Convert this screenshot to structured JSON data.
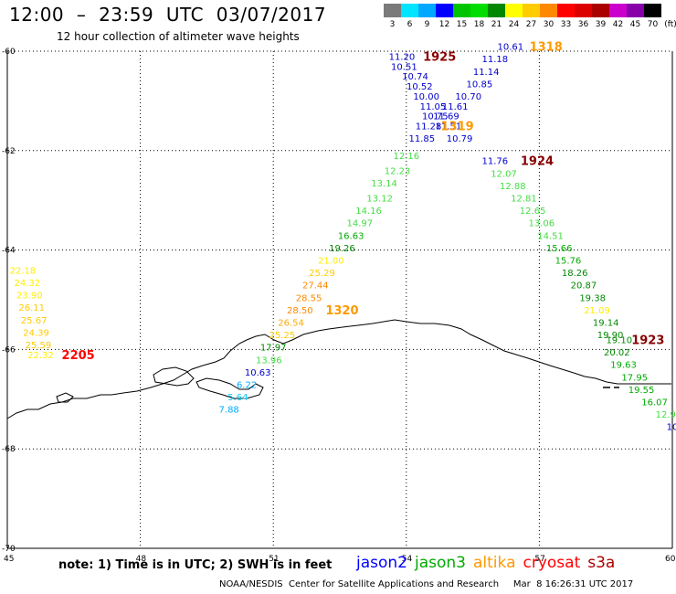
{
  "header": {
    "title": "12:00  –  23:59  UTC  03/07/2017",
    "subtitle": "12 hour collection of altimeter wave heights"
  },
  "color_scale": {
    "unit": "(ft)",
    "bins": [
      {
        "label": "3",
        "color": "#7a7a7a"
      },
      {
        "label": "6",
        "color": "#00e5ff"
      },
      {
        "label": "9",
        "color": "#00a8ff"
      },
      {
        "label": "12",
        "color": "#0000ff"
      },
      {
        "label": "15",
        "color": "#00c400"
      },
      {
        "label": "18",
        "color": "#00dd00"
      },
      {
        "label": "21",
        "color": "#008800"
      },
      {
        "label": "24",
        "color": "#ffff00"
      },
      {
        "label": "27",
        "color": "#ffcc00"
      },
      {
        "label": "30",
        "color": "#ff8800"
      },
      {
        "label": "33",
        "color": "#ff0000"
      },
      {
        "label": "36",
        "color": "#dd0000"
      },
      {
        "label": "39",
        "color": "#aa0000"
      },
      {
        "label": "42",
        "color": "#cc00cc"
      },
      {
        "label": "45",
        "color": "#8800aa"
      },
      {
        "label": "70",
        "color": "#000000"
      }
    ]
  },
  "axes": {
    "x_ticks": [
      "45",
      "48",
      "51",
      "54",
      "57",
      "60"
    ],
    "y_ticks": [
      "-60",
      "-62",
      "-64",
      "-66",
      "-68",
      "-70"
    ]
  },
  "map_data": {
    "lon_range": [
      45,
      60
    ],
    "lat_range": [
      -70,
      -60
    ],
    "observations": [
      {
        "text": "11.20",
        "color": "#0000cc",
        "lon": 53.9,
        "lat": -60.1
      },
      {
        "text": "10.51",
        "color": "#0000cc",
        "lon": 53.95,
        "lat": -60.3
      },
      {
        "text": "10.74",
        "color": "#0000cc",
        "lon": 54.2,
        "lat": -60.5
      },
      {
        "text": "10.52",
        "color": "#0000cc",
        "lon": 54.3,
        "lat": -60.7
      },
      {
        "text": "10.00",
        "color": "#0000cc",
        "lon": 54.45,
        "lat": -60.9
      },
      {
        "text": "11.05",
        "color": "#0000cc",
        "lon": 54.6,
        "lat": -61.1
      },
      {
        "text": "10.75",
        "color": "#0000cc",
        "lon": 54.65,
        "lat": -61.3
      },
      {
        "text": "11.28",
        "color": "#0000cc",
        "lon": 54.5,
        "lat": -61.5
      },
      {
        "text": "11.85",
        "color": "#0000cc",
        "lon": 54.35,
        "lat": -61.75
      },
      {
        "text": "10.61",
        "color": "#0000cc",
        "lon": 56.35,
        "lat": -59.9
      },
      {
        "text": "11.18",
        "color": "#0000cc",
        "lon": 56.0,
        "lat": -60.15
      },
      {
        "text": "11.14",
        "color": "#0000cc",
        "lon": 55.8,
        "lat": -60.4
      },
      {
        "text": "10.85",
        "color": "#0000cc",
        "lon": 55.65,
        "lat": -60.65
      },
      {
        "text": "10.70",
        "color": "#0000cc",
        "lon": 55.4,
        "lat": -60.9
      },
      {
        "text": "11.61",
        "color": "#0000cc",
        "lon": 55.1,
        "lat": -61.1
      },
      {
        "text": "11.69",
        "color": "#0000cc",
        "lon": 54.9,
        "lat": -61.3
      },
      {
        "text": "11.51",
        "color": "#0000cc",
        "lon": 54.95,
        "lat": -61.5
      },
      {
        "text": "10.79",
        "color": "#0000cc",
        "lon": 55.2,
        "lat": -61.75
      },
      {
        "text": "11.76",
        "color": "#0000cc",
        "lon": 56.0,
        "lat": -62.2
      },
      {
        "text": "12.16",
        "color": "#44dd44",
        "lon": 54.0,
        "lat": -62.1
      },
      {
        "text": "12.23",
        "color": "#44dd44",
        "lon": 53.8,
        "lat": -62.4
      },
      {
        "text": "13.14",
        "color": "#44dd44",
        "lon": 53.5,
        "lat": -62.65
      },
      {
        "text": "13.12",
        "color": "#44dd44",
        "lon": 53.4,
        "lat": -62.95
      },
      {
        "text": "14.16",
        "color": "#44dd44",
        "lon": 53.15,
        "lat": -63.2
      },
      {
        "text": "14.97",
        "color": "#44dd44",
        "lon": 52.95,
        "lat": -63.45
      },
      {
        "text": "16.63",
        "color": "#00aa00",
        "lon": 52.75,
        "lat": -63.7
      },
      {
        "text": "19.26",
        "color": "#008800",
        "lon": 52.55,
        "lat": -63.95
      },
      {
        "text": "12.07",
        "color": "#44dd44",
        "lon": 56.2,
        "lat": -62.45
      },
      {
        "text": "12.88",
        "color": "#44dd44",
        "lon": 56.4,
        "lat": -62.7
      },
      {
        "text": "12.81",
        "color": "#44dd44",
        "lon": 56.65,
        "lat": -62.95
      },
      {
        "text": "12.65",
        "color": "#44dd44",
        "lon": 56.85,
        "lat": -63.2
      },
      {
        "text": "13.06",
        "color": "#44dd44",
        "lon": 57.05,
        "lat": -63.45
      },
      {
        "text": "14.51",
        "color": "#44dd44",
        "lon": 57.25,
        "lat": -63.7
      },
      {
        "text": "15.66",
        "color": "#00aa00",
        "lon": 57.45,
        "lat": -63.95
      },
      {
        "text": "15.76",
        "color": "#00aa00",
        "lon": 57.65,
        "lat": -64.2
      },
      {
        "text": "18.26",
        "color": "#008800",
        "lon": 57.8,
        "lat": -64.45
      },
      {
        "text": "20.87",
        "color": "#008800",
        "lon": 58.0,
        "lat": -64.7
      },
      {
        "text": "19.38",
        "color": "#008800",
        "lon": 58.2,
        "lat": -64.95
      },
      {
        "text": "21.09",
        "color": "#ffee00",
        "lon": 58.3,
        "lat": -65.2
      },
      {
        "text": "19.14",
        "color": "#008800",
        "lon": 58.5,
        "lat": -65.45
      },
      {
        "text": "19.90",
        "color": "#008800",
        "lon": 58.6,
        "lat": -65.7
      },
      {
        "text": "19.10",
        "color": "#008800",
        "lon": 58.8,
        "lat": -65.8
      },
      {
        "text": "20.02",
        "color": "#008800",
        "lon": 58.75,
        "lat": -66.05
      },
      {
        "text": "19.63",
        "color": "#00aa00",
        "lon": 58.9,
        "lat": -66.3
      },
      {
        "text": "17.95",
        "color": "#00aa00",
        "lon": 59.15,
        "lat": -66.55
      },
      {
        "text": "19.55",
        "color": "#00aa00",
        "lon": 59.3,
        "lat": -66.8
      },
      {
        "text": "16.07",
        "color": "#00aa00",
        "lon": 59.6,
        "lat": -67.05
      },
      {
        "text": "12.9",
        "color": "#44dd44",
        "lon": 59.85,
        "lat": -67.3
      },
      {
        "text": "10",
        "color": "#0000cc",
        "lon": 60.0,
        "lat": -67.55
      },
      {
        "text": "21.00",
        "color": "#ffee00",
        "lon": 52.3,
        "lat": -64.2
      },
      {
        "text": "25.29",
        "color": "#ffcc00",
        "lon": 52.1,
        "lat": -64.45
      },
      {
        "text": "27.44",
        "color": "#ff8800",
        "lon": 51.95,
        "lat": -64.7
      },
      {
        "text": "28.55",
        "color": "#ff8800",
        "lon": 51.8,
        "lat": -64.95
      },
      {
        "text": "28.50",
        "color": "#ff8800",
        "lon": 51.6,
        "lat": -65.2
      },
      {
        "text": "26.54",
        "color": "#ffaa00",
        "lon": 51.4,
        "lat": -65.45
      },
      {
        "text": "25.25",
        "color": "#ffcc00",
        "lon": 51.2,
        "lat": -65.7
      },
      {
        "text": "17.97",
        "color": "#008800",
        "lon": 51.0,
        "lat": -65.95
      },
      {
        "text": "13.96",
        "color": "#44dd44",
        "lon": 50.9,
        "lat": -66.2
      },
      {
        "text": "10.63",
        "color": "#0000cc",
        "lon": 50.65,
        "lat": -66.45
      },
      {
        "text": "6.22",
        "color": "#00aaff",
        "lon": 50.4,
        "lat": -66.7
      },
      {
        "text": "5.64",
        "color": "#00ccff",
        "lon": 50.2,
        "lat": -66.95
      },
      {
        "text": "7.88",
        "color": "#00aaff",
        "lon": 50.0,
        "lat": -67.2
      },
      {
        "text": "22.18",
        "color": "#ffee00",
        "lon": 45.35,
        "lat": -64.4
      },
      {
        "text": "24.32",
        "color": "#ffee00",
        "lon": 45.45,
        "lat": -64.65
      },
      {
        "text": "23.90",
        "color": "#ffee00",
        "lon": 45.5,
        "lat": -64.9
      },
      {
        "text": "26.11",
        "color": "#ffcc00",
        "lon": 45.55,
        "lat": -65.15
      },
      {
        "text": "25.67",
        "color": "#ffcc00",
        "lon": 45.6,
        "lat": -65.4
      },
      {
        "text": "24.39",
        "color": "#ffcc00",
        "lon": 45.65,
        "lat": -65.65
      },
      {
        "text": "25.59",
        "color": "#ffcc00",
        "lon": 45.7,
        "lat": -65.9
      },
      {
        "text": "22.32",
        "color": "#ffee00",
        "lon": 45.75,
        "lat": -66.1
      }
    ],
    "time_labels": [
      {
        "text": "1925",
        "color": "#880000",
        "lon": 54.75,
        "lat": -60.1
      },
      {
        "text": "1318",
        "color": "#ff9900",
        "lon": 57.15,
        "lat": -59.9
      },
      {
        "text": "1319",
        "color": "#ff9900",
        "lon": 55.15,
        "lat": -61.5
      },
      {
        "text": "1924",
        "color": "#880000",
        "lon": 56.95,
        "lat": -62.2
      },
      {
        "text": "1320",
        "color": "#ff9900",
        "lon": 52.55,
        "lat": -65.2
      },
      {
        "text": "1923",
        "color": "#880000",
        "lon": 59.45,
        "lat": -65.8
      },
      {
        "text": "2205",
        "color": "#ff0000",
        "lon": 46.6,
        "lat": -66.1
      }
    ]
  },
  "note": "note:  1) Time is in UTC;  2) SWH is in feet",
  "legend": [
    {
      "label": "jason2",
      "color": "#0000ff"
    },
    {
      "label": "jason3",
      "color": "#00aa00"
    },
    {
      "label": "altika",
      "color": "#ff9900"
    },
    {
      "label": "cryosat",
      "color": "#ff0000"
    },
    {
      "label": "s3a",
      "color": "#aa0000"
    }
  ],
  "footer": "NOAA/NESDIS  Center for Satellite Applications and Research     Mar  8 16:26:31 UTC 2017"
}
